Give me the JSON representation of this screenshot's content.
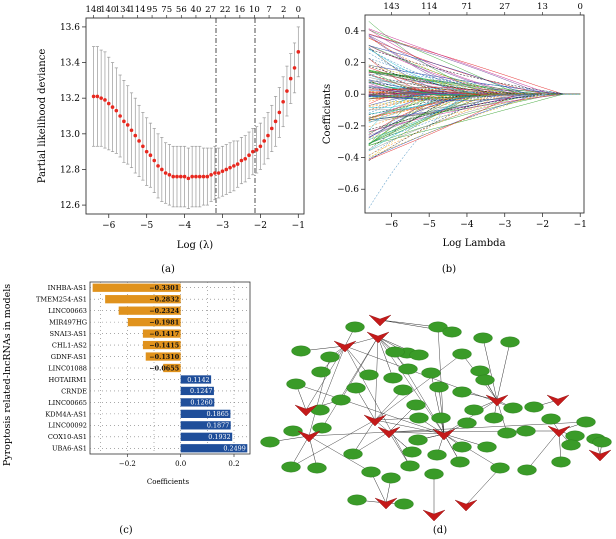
{
  "chart_data": [
    {
      "id": "a",
      "type": "line",
      "panel_label": "(a)",
      "title": "",
      "xlabel": "Log (λ)",
      "ylabel": "Partial likelihood deviance",
      "xlim": [
        -6.6,
        -0.85
      ],
      "ylim": [
        12.55,
        13.65
      ],
      "x_ticks": [
        -6,
        -5,
        -4,
        -3,
        -2,
        -1
      ],
      "y_ticks": [
        12.6,
        12.8,
        13.0,
        13.2,
        13.4,
        13.6
      ],
      "top_axis_ticks": [
        "148",
        "140",
        "134",
        "114",
        "95",
        "75",
        "56",
        "40",
        "27",
        "22",
        "16",
        "10",
        "7",
        "2",
        "0"
      ],
      "vlines": [
        -3.12,
        -2.05
      ],
      "series": [
        {
          "name": "mean deviance",
          "color": "#e8281f",
          "x": [
            -6.4,
            -6.3,
            -6.2,
            -6.1,
            -6.0,
            -5.9,
            -5.8,
            -5.7,
            -5.6,
            -5.5,
            -5.4,
            -5.3,
            -5.2,
            -5.1,
            -5.0,
            -4.9,
            -4.8,
            -4.7,
            -4.6,
            -4.5,
            -4.4,
            -4.3,
            -4.2,
            -4.1,
            -4.0,
            -3.9,
            -3.8,
            -3.7,
            -3.6,
            -3.5,
            -3.4,
            -3.3,
            -3.2,
            -3.1,
            -3.0,
            -2.9,
            -2.8,
            -2.7,
            -2.6,
            -2.5,
            -2.4,
            -2.3,
            -2.2,
            -2.1,
            -2.0,
            -1.9,
            -1.8,
            -1.7,
            -1.6,
            -1.5,
            -1.4,
            -1.3,
            -1.2,
            -1.1,
            -1.0
          ],
          "y": [
            13.21,
            13.21,
            13.2,
            13.19,
            13.17,
            13.15,
            13.13,
            13.1,
            13.07,
            13.05,
            13.02,
            12.99,
            12.96,
            12.93,
            12.9,
            12.88,
            12.85,
            12.82,
            12.8,
            12.78,
            12.77,
            12.76,
            12.76,
            12.76,
            12.76,
            12.75,
            12.76,
            12.76,
            12.76,
            12.76,
            12.76,
            12.77,
            12.78,
            12.78,
            12.79,
            12.8,
            12.81,
            12.82,
            12.83,
            12.85,
            12.86,
            12.88,
            12.9,
            12.91,
            12.93,
            12.96,
            12.99,
            13.03,
            13.07,
            13.12,
            13.18,
            13.24,
            13.31,
            13.37,
            13.46
          ],
          "err": [
            0.28,
            0.28,
            0.27,
            0.27,
            0.26,
            0.25,
            0.24,
            0.23,
            0.23,
            0.22,
            0.21,
            0.21,
            0.2,
            0.19,
            0.19,
            0.18,
            0.18,
            0.18,
            0.18,
            0.17,
            0.17,
            0.17,
            0.17,
            0.17,
            0.17,
            0.17,
            0.17,
            0.17,
            0.17,
            0.16,
            0.16,
            0.15,
            0.15,
            0.14,
            0.14,
            0.14,
            0.14,
            0.14,
            0.13,
            0.13,
            0.13,
            0.13,
            0.13,
            0.13,
            0.13,
            0.13,
            0.13,
            0.13,
            0.14,
            0.14,
            0.14,
            0.14,
            0.14,
            0.14,
            0.14
          ]
        }
      ]
    },
    {
      "id": "b",
      "type": "line",
      "panel_label": "(b)",
      "title": "",
      "xlabel": "Log Lambda",
      "ylabel": "Coefficients",
      "xlim": [
        -6.7,
        -0.9
      ],
      "ylim": [
        -0.75,
        0.5
      ],
      "x_ticks": [
        -6,
        -5,
        -4,
        -3,
        -2,
        -1
      ],
      "y_ticks": [
        -0.6,
        -0.4,
        -0.2,
        0.0,
        0.2,
        0.4
      ],
      "top_axis_ticks": [
        "143",
        "114",
        "71",
        "27",
        "13",
        "0"
      ],
      "series_count": 148,
      "note": "LASSO coefficient paths, one line per candidate lncRNA, converging to 0"
    },
    {
      "id": "c",
      "type": "bar",
      "orientation": "horizontal",
      "panel_label": "(c)",
      "title": "",
      "xlabel": "Coefficients",
      "ylabel": "Pyroptosis related-lncRNAs in models",
      "xlim": [
        -0.34,
        0.26
      ],
      "x_ticks": [
        -0.2,
        0.0,
        0.2
      ],
      "x_tick_labels": [
        "−0.2",
        "0.0",
        "0.2"
      ],
      "colors": {
        "negative": "#e0921c",
        "positive": "#1f4e9a"
      },
      "categories": [
        "INHBA-AS1",
        "TMEM254-AS1",
        "LINC00663",
        "MIR497HG",
        "SNAI3-AS1",
        "CHL1-AS2",
        "GDNF-AS1",
        "LINC01088",
        "HOTAIRM1",
        "CRNDE",
        "LINC00665",
        "KDM4A-AS1",
        "LINC00092",
        "COX10-AS1",
        "UBA6-AS1"
      ],
      "values": [
        -0.3301,
        -0.2832,
        -0.2324,
        -0.1981,
        -0.1417,
        -0.1415,
        -0.131,
        -0.0655,
        0.1142,
        0.1247,
        0.126,
        0.1865,
        0.1877,
        0.1932,
        0.2499
      ],
      "value_labels": [
        "−0.3301",
        "−0.2832",
        "−0.2324",
        "−0.1981",
        "−0.1417",
        "−0.1415",
        "−0.1310",
        "−0.0655",
        "0.1142",
        "0.1247",
        "0.1260",
        "0.1865",
        "0.1877",
        "0.1932",
        "0.2499"
      ]
    },
    {
      "id": "d",
      "type": "network",
      "panel_label": "(d)",
      "title": "",
      "legend": {
        "mrna_color": "#3a9b28",
        "lncrna_color": "#c41a1a"
      },
      "note": "Co-expression network of pyroptosis-related genes (green ellipses) and lncRNAs (red V-shapes); node labels illegible in source"
    }
  ]
}
